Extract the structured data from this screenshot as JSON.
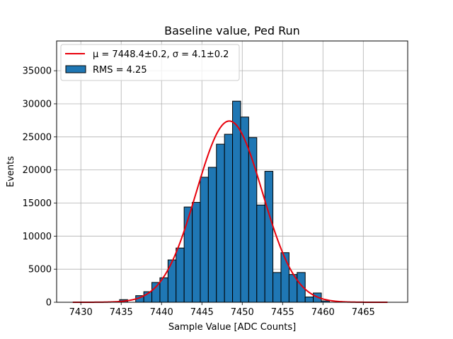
{
  "chart_data": {
    "type": "bar",
    "title": "Baseline value, Ped Run",
    "xlabel": "Sample Value [ADC Counts]",
    "ylabel": "Events",
    "xlim": [
      7427.0,
      7470.5
    ],
    "ylim": [
      0,
      39500
    ],
    "xticks": [
      7430,
      7435,
      7440,
      7445,
      7450,
      7455,
      7460,
      7465
    ],
    "yticks": [
      0,
      5000,
      10000,
      15000,
      20000,
      25000,
      30000,
      35000
    ],
    "grid": true,
    "legend_position": "top-left",
    "histogram": {
      "name": "RMS = 4.25",
      "color": "#1f77b4",
      "edge_color": "#000000",
      "bins": [
        {
          "x0": 7434.8,
          "x1": 7435.8,
          "value": 400
        },
        {
          "x0": 7435.8,
          "x1": 7436.8,
          "value": 0
        },
        {
          "x0": 7436.8,
          "x1": 7437.8,
          "value": 1000
        },
        {
          "x0": 7437.8,
          "x1": 7438.8,
          "value": 1600
        },
        {
          "x0": 7438.8,
          "x1": 7439.8,
          "value": 3000
        },
        {
          "x0": 7439.8,
          "x1": 7440.8,
          "value": 3700
        },
        {
          "x0": 7440.8,
          "x1": 7441.8,
          "value": 6400
        },
        {
          "x0": 7441.8,
          "x1": 7442.8,
          "value": 8200
        },
        {
          "x0": 7442.8,
          "x1": 7443.8,
          "value": 14400
        },
        {
          "x0": 7443.8,
          "x1": 7444.8,
          "value": 15100
        },
        {
          "x0": 7444.8,
          "x1": 7445.8,
          "value": 18900
        },
        {
          "x0": 7445.8,
          "x1": 7446.8,
          "value": 20400
        },
        {
          "x0": 7446.8,
          "x1": 7447.8,
          "value": 23900
        },
        {
          "x0": 7447.8,
          "x1": 7448.8,
          "value": 25400
        },
        {
          "x0": 7448.8,
          "x1": 7449.8,
          "value": 30400
        },
        {
          "x0": 7449.8,
          "x1": 7450.8,
          "value": 28000
        },
        {
          "x0": 7450.8,
          "x1": 7451.8,
          "value": 24900
        },
        {
          "x0": 7451.8,
          "x1": 7452.8,
          "value": 14700
        },
        {
          "x0": 7452.8,
          "x1": 7453.8,
          "value": 19800
        },
        {
          "x0": 7453.8,
          "x1": 7454.8,
          "value": 4500
        },
        {
          "x0": 7454.8,
          "x1": 7455.8,
          "value": 7500
        },
        {
          "x0": 7455.8,
          "x1": 7456.8,
          "value": 4200
        },
        {
          "x0": 7456.8,
          "x1": 7457.8,
          "value": 4500
        },
        {
          "x0": 7457.8,
          "x1": 7458.8,
          "value": 800
        },
        {
          "x0": 7458.8,
          "x1": 7459.8,
          "value": 1400
        },
        {
          "x0": 7459.8,
          "x1": 7460.8,
          "value": 200
        }
      ]
    },
    "fit": {
      "name": "μ = 7448.4±0.2, σ = 4.1±0.2",
      "color": "#e8000b",
      "mu": 7448.4,
      "sigma": 4.1,
      "amplitude": 27400,
      "x_range": [
        7429,
        7468
      ]
    }
  }
}
